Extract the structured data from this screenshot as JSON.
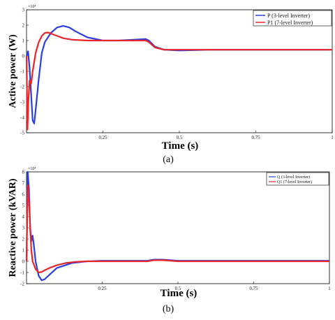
{
  "chart_data": [
    {
      "type": "line",
      "caption": "(a)",
      "xlabel": "Time (s)",
      "ylabel": "Active power (W)",
      "exponent": "×10⁴",
      "xlim": [
        0,
        1
      ],
      "ylim": [
        -5,
        3
      ],
      "xticks": [
        "0.25",
        "0.5",
        "0.75",
        "1"
      ],
      "yticks": [
        "3",
        "2",
        "1",
        "0",
        "-1",
        "-2",
        "-3",
        "-4",
        "-5"
      ],
      "legend_position": "top-right",
      "grid": false,
      "series": [
        {
          "name": "P (3-level Inverter)",
          "color": "#2b3fe0",
          "x": [
            0,
            0.005,
            0.01,
            0.015,
            0.02,
            0.025,
            0.03,
            0.04,
            0.05,
            0.06,
            0.08,
            0.1,
            0.12,
            0.14,
            0.16,
            0.2,
            0.25,
            0.3,
            0.35,
            0.39,
            0.4,
            0.42,
            0.45,
            0.5,
            0.6,
            0.7,
            0.8,
            0.9,
            1.0
          ],
          "y": [
            0,
            0.3,
            -0.8,
            -2.5,
            -4.2,
            -4.4,
            -3.5,
            -1.5,
            0.2,
            0.9,
            1.5,
            1.85,
            1.95,
            1.85,
            1.6,
            1.2,
            1.0,
            1.0,
            1.05,
            1.1,
            1.0,
            0.6,
            0.4,
            0.35,
            0.4,
            0.4,
            0.4,
            0.4,
            0.4
          ]
        },
        {
          "name": "P1 (7-level Inverter)",
          "color": "#e8262b",
          "x": [
            0,
            0.003,
            0.006,
            0.01,
            0.015,
            0.02,
            0.03,
            0.04,
            0.05,
            0.06,
            0.07,
            0.08,
            0.1,
            0.12,
            0.15,
            0.2,
            0.25,
            0.3,
            0.35,
            0.39,
            0.4,
            0.42,
            0.45,
            0.5,
            0.6,
            0.7,
            0.8,
            0.9,
            1.0
          ],
          "y": [
            0,
            -4.8,
            -3.0,
            -1.6,
            -1.8,
            -1.0,
            0.2,
            0.9,
            1.3,
            1.5,
            1.52,
            1.45,
            1.3,
            1.15,
            1.05,
            1.0,
            1.0,
            1.0,
            1.0,
            1.0,
            0.9,
            0.55,
            0.4,
            0.4,
            0.4,
            0.4,
            0.4,
            0.4,
            0.4
          ]
        }
      ]
    },
    {
      "type": "line",
      "caption": "(b)",
      "xlabel": "Time (s)",
      "ylabel": "Reactive power (kVAR)",
      "exponent": "×10⁴",
      "xlim": [
        0,
        1
      ],
      "ylim": [
        -2,
        8
      ],
      "xticks": [
        "0.25",
        "0.5",
        "0.75",
        "1"
      ],
      "yticks": [
        "8",
        "7",
        "6",
        "5",
        "4",
        "3",
        "2",
        "1",
        "0",
        "-1",
        "-2"
      ],
      "legend_position": "top-right",
      "grid": false,
      "series": [
        {
          "name": "Q (3-level Inverter)",
          "color": "#2b3fe0",
          "x": [
            0,
            0.004,
            0.008,
            0.012,
            0.016,
            0.02,
            0.024,
            0.03,
            0.04,
            0.05,
            0.06,
            0.08,
            0.1,
            0.15,
            0.2,
            0.25,
            0.3,
            0.35,
            0.4,
            0.42,
            0.45,
            0.5,
            0.6,
            0.7,
            0.8,
            0.9,
            1.0
          ],
          "y": [
            0,
            8.0,
            6.5,
            3.0,
            1.8,
            2.3,
            1.5,
            0.0,
            -1.3,
            -1.7,
            -1.6,
            -1.1,
            -0.6,
            -0.15,
            0.0,
            0.05,
            0.05,
            0.05,
            0.05,
            0.15,
            0.15,
            0.05,
            0.05,
            0.05,
            0.05,
            0.05,
            0.05
          ]
        },
        {
          "name": "Q1 (7-level Inverter)",
          "color": "#e8262b",
          "x": [
            0,
            0.004,
            0.008,
            0.012,
            0.016,
            0.02,
            0.03,
            0.04,
            0.05,
            0.06,
            0.08,
            0.1,
            0.13,
            0.16,
            0.2,
            0.25,
            0.3,
            0.35,
            0.4,
            0.42,
            0.45,
            0.5,
            0.6,
            0.7,
            0.8,
            0.9,
            1.0
          ],
          "y": [
            0,
            6.8,
            5.5,
            3.0,
            1.0,
            0.0,
            -0.7,
            -1.0,
            -0.95,
            -0.8,
            -0.55,
            -0.35,
            -0.15,
            -0.05,
            0.0,
            0.0,
            0.0,
            0.0,
            0.0,
            0.1,
            0.1,
            0.0,
            0.0,
            0.0,
            0.0,
            0.0,
            0.0
          ]
        }
      ]
    }
  ]
}
